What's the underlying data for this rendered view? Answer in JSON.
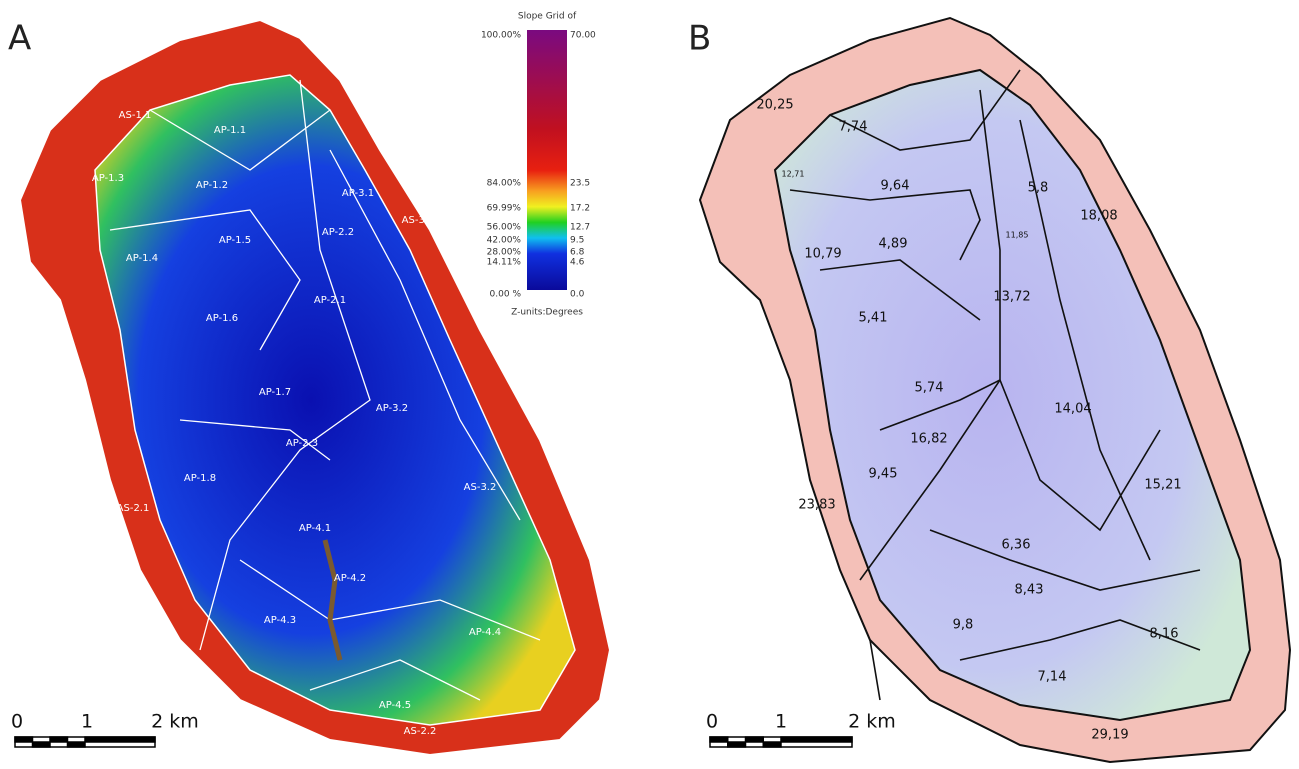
{
  "panel_a": {
    "label": "A",
    "legend": {
      "title": "Slope Grid of",
      "percent_labels": [
        "100.00%",
        "84.00%",
        "69.99%",
        "56.00%",
        "42.00%",
        "28.00%",
        "14.11%",
        "0.00 %"
      ],
      "degree_labels": [
        "70.00",
        "23.5",
        "17.2",
        "12.7",
        "9.5",
        "6.8",
        "4.6",
        "0.0"
      ],
      "units": "Z-units:Degrees"
    },
    "zones": [
      "AS-1.1",
      "AP-1.1",
      "AP-1.2",
      "AP-1.3",
      "AP-3.1",
      "AS-3.1",
      "AP-1.5",
      "AP-2.2",
      "AP-1.4",
      "AP-2.1",
      "AP-1.6",
      "AP-1.7",
      "AP-3.2",
      "AP-2.3",
      "AP-1.8",
      "AS-3.2",
      "AS-2.1",
      "AP-4.1",
      "AP-4.2",
      "AP-4.3",
      "AP-4.4",
      "AP-4.5",
      "AS-2.2"
    ],
    "scale_bar": {
      "labels": [
        "0",
        "1",
        "2 km"
      ]
    }
  },
  "panel_b": {
    "label": "B",
    "zone_values": [
      "20,25",
      "7,74",
      "12,71",
      "9,64",
      "5,8",
      "18,08",
      "11,85",
      "4,89",
      "10,79",
      "13,72",
      "5,41",
      "5,74",
      "14,04",
      "16,82",
      "9,45",
      "15,21",
      "23,83",
      "6,36",
      "8,43",
      "9,8",
      "8,16",
      "7,14",
      "29,19"
    ],
    "scale_bar": {
      "labels": [
        "0",
        "1",
        "2 km"
      ]
    }
  }
}
